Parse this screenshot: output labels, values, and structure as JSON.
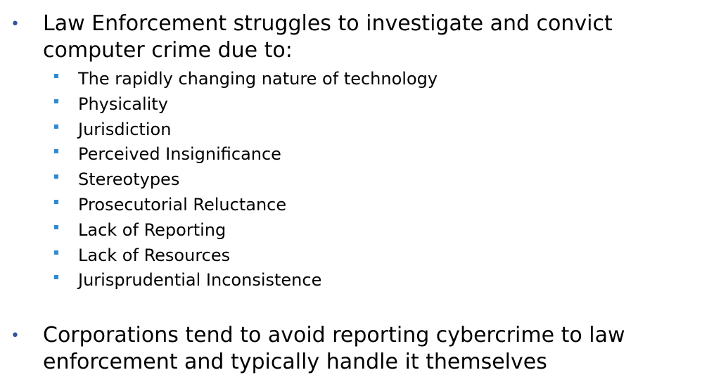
{
  "bullets": {
    "first": "Law Enforcement struggles to investigate and convict computer crime due to:",
    "sub_items": [
      "The rapidly changing nature of technology",
      "Physicality",
      "Jurisdiction",
      "Perceived Insignificance",
      "Stereotypes",
      "Prosecutorial Reluctance",
      "Lack of Reporting",
      "Lack of Resources",
      "Jurisprudential Inconsistence"
    ],
    "second": "Corporations tend to avoid reporting cybercrime to law enforcement and typically handle it themselves"
  },
  "colors": {
    "main_bullet": "#2f5597",
    "sub_bullet": "#2f8ad1",
    "text": "#000000",
    "background": "#ffffff"
  }
}
